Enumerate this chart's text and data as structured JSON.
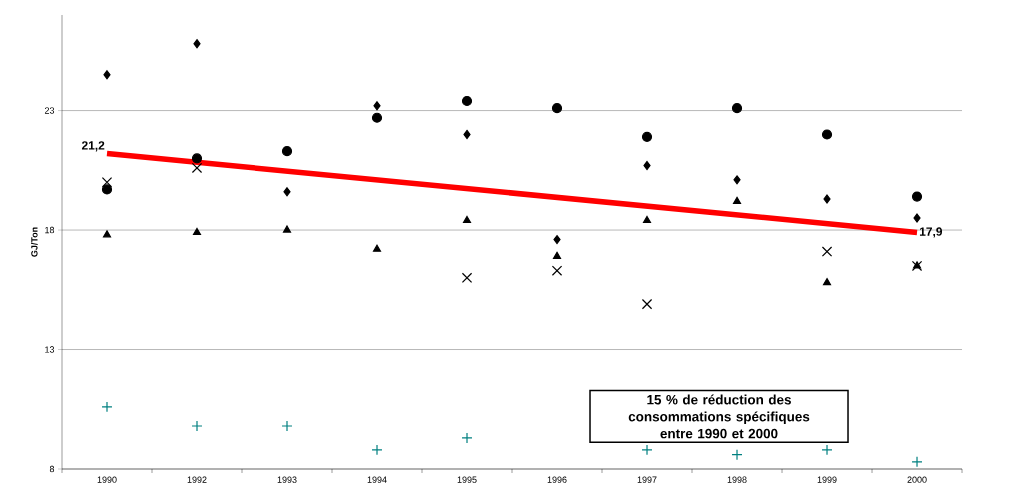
{
  "chart_data": {
    "type": "scatter",
    "ylabel": "GJ/Ton",
    "categories": [
      "1990",
      "1992",
      "1993",
      "1994",
      "1995",
      "1996",
      "1997",
      "1998",
      "1999",
      "2000"
    ],
    "series": [
      {
        "color": "#000000",
        "marker": "diamond",
        "values": [
          24.5,
          25.8,
          19.6,
          23.2,
          22.0,
          17.6,
          20.7,
          20.1,
          19.3,
          18.5
        ]
      },
      {
        "color": "#000000",
        "marker": "circle",
        "values": [
          19.7,
          21.0,
          21.3,
          22.7,
          23.4,
          23.1,
          21.9,
          23.1,
          22.0,
          19.4
        ]
      },
      {
        "color": "#000000",
        "marker": "cross",
        "values": [
          20.0,
          20.6,
          null,
          null,
          16.0,
          16.3,
          14.9,
          null,
          17.1,
          16.5
        ]
      },
      {
        "color": "#000000",
        "marker": "triangle",
        "values": [
          17.8,
          17.9,
          18.0,
          17.2,
          18.4,
          16.9,
          18.4,
          19.2,
          15.8,
          16.5
        ]
      },
      {
        "color": "#008080",
        "marker": "plus",
        "values": [
          10.6,
          9.8,
          9.8,
          8.8,
          9.3,
          null,
          8.8,
          8.6,
          8.8,
          8.3
        ]
      },
      {
        "type": "line",
        "color": "#ff0000",
        "marker": "none",
        "values": [
          21.2,
          null,
          null,
          null,
          null,
          null,
          null,
          null,
          null,
          17.9
        ],
        "value_labels": [
          "21,2",
          null,
          null,
          null,
          null,
          null,
          null,
          null,
          null,
          "17,9"
        ]
      }
    ],
    "ylim": [
      8,
      27
    ],
    "yticks": [
      8,
      13,
      18,
      23
    ],
    "grid": "y",
    "annotations": [
      "15 % de réduction des consommations spécifiques entre 1990 et 2000"
    ]
  }
}
